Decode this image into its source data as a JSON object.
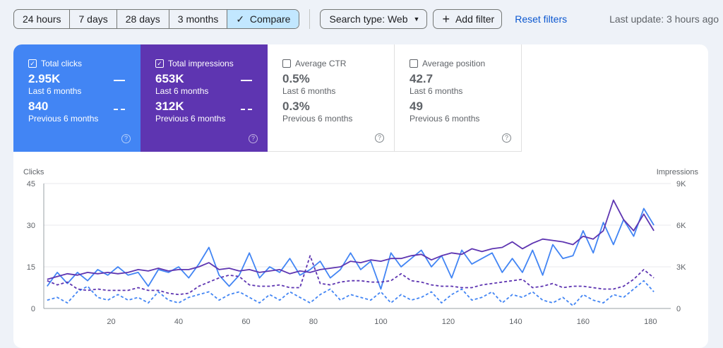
{
  "toolbar": {
    "ranges": [
      "24 hours",
      "7 days",
      "28 days",
      "3 months"
    ],
    "compare": "Compare",
    "check_icon": "✓",
    "search_type": "Search type: Web",
    "add_filter": "Add filter",
    "reset": "Reset filters",
    "last_update": "Last update: 3 hours ago"
  },
  "cards": [
    {
      "label": "Total clicks",
      "checked": true,
      "current": "2.95K",
      "current_label": "Last 6 months",
      "previous": "840",
      "previous_label": "Previous 6 months",
      "color": "#4285f4"
    },
    {
      "label": "Total impressions",
      "checked": true,
      "current": "653K",
      "current_label": "Last 6 months",
      "previous": "312K",
      "previous_label": "Previous 6 months",
      "color": "#5e35b1"
    },
    {
      "label": "Average CTR",
      "checked": false,
      "current": "0.5%",
      "current_label": "Last 6 months",
      "previous": "0.3%",
      "previous_label": "Previous 6 months"
    },
    {
      "label": "Average position",
      "checked": false,
      "current": "42.7",
      "current_label": "Last 6 months",
      "previous": "49",
      "previous_label": "Previous 6 months"
    }
  ],
  "chart_data": {
    "type": "line",
    "ylabel_left": "Clicks",
    "ylabel_right": "Impressions",
    "ylim_left": [
      0,
      45
    ],
    "ylim_right": [
      0,
      9000
    ],
    "yticks_left": [
      "0",
      "15",
      "30",
      "45"
    ],
    "yticks_right": [
      "0",
      "3K",
      "6K",
      "9K"
    ],
    "xticks": [
      "20",
      "40",
      "60",
      "80",
      "100",
      "120",
      "140",
      "160",
      "180"
    ],
    "xlim": [
      0,
      186
    ],
    "grid": true,
    "x": [
      1,
      4,
      7,
      10,
      13,
      16,
      19,
      22,
      25,
      28,
      31,
      34,
      37,
      40,
      43,
      46,
      49,
      52,
      55,
      58,
      61,
      64,
      67,
      70,
      73,
      76,
      79,
      82,
      85,
      88,
      91,
      94,
      97,
      100,
      103,
      106,
      109,
      112,
      115,
      118,
      121,
      124,
      127,
      130,
      133,
      136,
      139,
      142,
      145,
      148,
      151,
      154,
      157,
      160,
      163,
      166,
      169,
      172,
      175,
      178,
      181
    ],
    "series": [
      {
        "axis": "left",
        "dashed": false,
        "color": "#4285f4",
        "values": [
          8,
          13,
          9,
          13,
          10,
          14,
          12,
          15,
          12,
          13,
          8,
          14,
          13,
          15,
          11,
          16,
          22,
          12,
          8,
          12,
          20,
          11,
          15,
          13,
          18,
          12,
          14,
          17,
          11,
          14,
          20,
          14,
          17,
          7,
          20,
          15,
          18,
          21,
          15,
          19,
          11,
          21,
          16,
          18,
          20,
          13,
          18,
          13,
          21,
          12,
          23,
          18,
          19,
          28,
          20,
          31,
          23,
          32,
          26,
          36,
          30
        ]
      },
      {
        "axis": "right",
        "dashed": false,
        "color": "#5e35b1",
        "values": [
          2100,
          2300,
          2500,
          2400,
          2600,
          2500,
          2600,
          2500,
          2600,
          2800,
          2700,
          2900,
          2700,
          2800,
          2800,
          3000,
          3300,
          2800,
          2900,
          2700,
          2800,
          2600,
          2700,
          2800,
          2500,
          2700,
          2600,
          2800,
          2900,
          3000,
          3400,
          3300,
          3500,
          3400,
          3600,
          3600,
          3800,
          3900,
          3500,
          3800,
          4000,
          3900,
          4300,
          4100,
          4300,
          4400,
          4800,
          4300,
          4700,
          5000,
          4900,
          4800,
          4600,
          5200,
          5000,
          5600,
          7800,
          6400,
          5600,
          6800,
          5600
        ]
      },
      {
        "axis": "left",
        "dashed": true,
        "color": "#4285f4",
        "values": [
          3,
          4,
          2,
          6,
          8,
          4,
          3,
          5,
          3,
          4,
          2,
          6,
          3,
          2,
          4,
          5,
          6,
          3,
          5,
          6,
          4,
          2,
          5,
          3,
          6,
          4,
          2,
          5,
          7,
          3,
          5,
          4,
          3,
          6,
          2,
          5,
          3,
          4,
          6,
          2,
          5,
          7,
          3,
          4,
          6,
          2,
          5,
          4,
          6,
          3,
          2,
          4,
          1,
          5,
          3,
          2,
          5,
          4,
          7,
          10,
          6
        ]
      },
      {
        "axis": "right",
        "dashed": true,
        "color": "#5e35b1",
        "values": [
          2000,
          1700,
          1900,
          1400,
          1300,
          1400,
          1300,
          1300,
          1300,
          1500,
          1300,
          1300,
          1100,
          1000,
          1100,
          1600,
          1900,
          2200,
          2400,
          2300,
          1700,
          1600,
          1600,
          1700,
          1500,
          1500,
          3800,
          1800,
          1700,
          1900,
          2000,
          2000,
          1900,
          1900,
          2000,
          2500,
          2000,
          1900,
          1700,
          1600,
          1600,
          1500,
          1500,
          1700,
          1800,
          1900,
          2000,
          2100,
          1500,
          1600,
          1800,
          1500,
          1600,
          1600,
          1500,
          1400,
          1400,
          1600,
          2100,
          2800,
          2200
        ]
      }
    ]
  }
}
